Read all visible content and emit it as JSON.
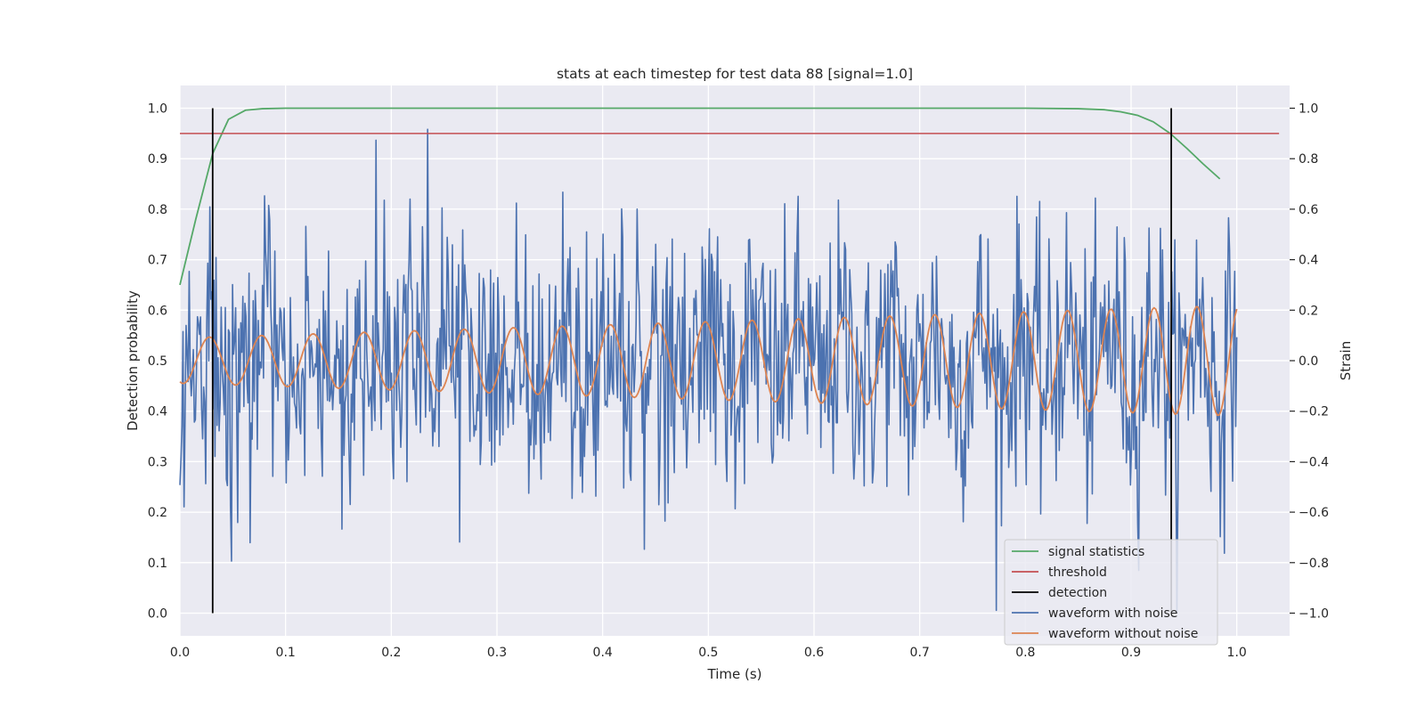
{
  "chart_data": {
    "type": "line",
    "title": "stats at each timestep for test data 88 [signal=1.0]",
    "xlabel": "Time (s)",
    "ylabel_left": "Detection probability",
    "ylabel_right": "Strain",
    "xlim": [
      0.0,
      1.05
    ],
    "ylim_left": [
      -0.045,
      1.045
    ],
    "ylim_right": [
      -1.09,
      1.09
    ],
    "x_ticks": [
      0.0,
      0.1,
      0.2,
      0.3,
      0.4,
      0.5,
      0.6,
      0.7,
      0.8,
      0.9,
      1.0
    ],
    "x_tick_labels": [
      "0.0",
      "0.1",
      "0.2",
      "0.3",
      "0.4",
      "0.5",
      "0.6",
      "0.7",
      "0.8",
      "0.9",
      "1.0"
    ],
    "y_left_ticks": [
      0.0,
      0.1,
      0.2,
      0.3,
      0.4,
      0.5,
      0.6,
      0.7,
      0.8,
      0.9,
      1.0
    ],
    "y_left_tick_labels": [
      "0.0",
      "0.1",
      "0.2",
      "0.3",
      "0.4",
      "0.5",
      "0.6",
      "0.7",
      "0.8",
      "0.9",
      "1.0"
    ],
    "y_right_ticks": [
      -1.0,
      -0.8,
      -0.6,
      -0.4,
      -0.2,
      0.0,
      0.2,
      0.4,
      0.6,
      0.8,
      1.0
    ],
    "y_right_tick_labels": [
      "−1.0",
      "−0.8",
      "−0.6",
      "−0.4",
      "−0.2",
      "0.0",
      "0.2",
      "0.4",
      "0.6",
      "0.8",
      "1.0"
    ],
    "grid": true,
    "legend_position": "lower-right",
    "colors": {
      "background": "#eaeaf2",
      "grid": "#ffffff",
      "signal_statistics": "#55a868",
      "threshold": "#c44e52",
      "detection": "#000000",
      "waveform_noise": "#4c72b0",
      "waveform_clean": "#dd8452"
    },
    "series": [
      {
        "name": "signal statistics",
        "axis": "left",
        "x": [
          0.0,
          0.015,
          0.031,
          0.046,
          0.062,
          0.078,
          0.1,
          0.2,
          0.3,
          0.4,
          0.5,
          0.6,
          0.7,
          0.8,
          0.85,
          0.875,
          0.89,
          0.906,
          0.921,
          0.937,
          0.953,
          0.968,
          0.984
        ],
        "values": [
          0.65,
          0.78,
          0.91,
          0.978,
          0.996,
          0.999,
          1.0,
          1.0,
          1.0,
          1.0,
          1.0,
          1.0,
          1.0,
          1.0,
          0.999,
          0.997,
          0.993,
          0.986,
          0.973,
          0.95,
          0.92,
          0.89,
          0.86
        ]
      },
      {
        "name": "threshold",
        "axis": "left",
        "x": [
          0.0,
          1.04
        ],
        "values": [
          0.95,
          0.95
        ]
      },
      {
        "name": "detection",
        "axis": "left",
        "lines": [
          {
            "x": 0.031,
            "y0": 0.0,
            "y1": 1.0
          },
          {
            "x": 0.938,
            "y0": 0.0,
            "y1": 1.0
          }
        ]
      },
      {
        "name": "waveform with noise",
        "axis": "right",
        "sample_rate_hz": 1024,
        "t_range": [
          0.0,
          1.0
        ],
        "amplitude_range": [
          -1.0,
          1.0
        ]
      },
      {
        "name": "waveform without noise",
        "axis": "right",
        "x": [
          0.0,
          1.0
        ],
        "amplitude_start": 0.09,
        "amplitude_end": 0.22,
        "frequency_start_hz": 20,
        "frequency_end_hz": 25
      }
    ]
  },
  "legend": {
    "items": [
      {
        "label": "signal statistics",
        "color": "#55a868"
      },
      {
        "label": "threshold",
        "color": "#c44e52"
      },
      {
        "label": "detection",
        "color": "#000000"
      },
      {
        "label": "waveform with noise",
        "color": "#4c72b0"
      },
      {
        "label": "waveform without noise",
        "color": "#dd8452"
      }
    ]
  }
}
